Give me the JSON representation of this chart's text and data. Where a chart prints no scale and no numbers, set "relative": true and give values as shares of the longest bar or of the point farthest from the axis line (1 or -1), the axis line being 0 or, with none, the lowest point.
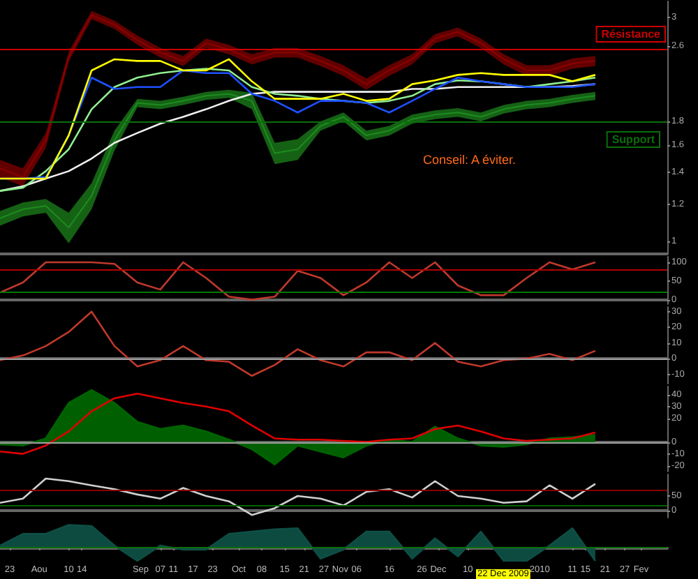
{
  "chart_data": [
    {
      "type": "line",
      "log": "y",
      "tick_labels": "y",
      "xlim": [
        "2009-07-20",
        "2010-02-09"
      ],
      "ylim": [
        0.94,
        3.24
      ],
      "yticks": [
        1,
        1.2,
        1.4,
        1.6,
        1.8,
        2.6,
        3
      ],
      "x": [
        "2009-07-20",
        "2009-07-27",
        "2009-08-03",
        "2009-08-10",
        "2009-08-17",
        "2009-08-24",
        "2009-08-31",
        "2009-09-07",
        "2009-09-14",
        "2009-09-21",
        "2009-09-28",
        "2009-10-05",
        "2009-10-12",
        "2009-10-19",
        "2009-10-26",
        "2009-11-02",
        "2009-11-09",
        "2009-11-16",
        "2009-11-23",
        "2009-11-30",
        "2009-12-07",
        "2009-12-14",
        "2009-12-21",
        "2009-12-28",
        "2010-01-04",
        "2010-01-11",
        "2010-01-18"
      ],
      "series": [
        {
          "color": "#8b0000",
          "values": [
            1.43,
            1.37,
            1.64,
            2.47,
            3.03,
            2.89,
            2.68,
            2.52,
            2.42,
            2.64,
            2.56,
            2.44,
            2.52,
            2.52,
            2.42,
            2.31,
            2.16,
            2.31,
            2.44,
            2.7,
            2.79,
            2.64,
            2.44,
            2.31,
            2.31,
            2.39,
            2.42
          ],
          "lower": [
            1.37,
            1.31,
            1.58,
            2.41,
            2.97,
            2.83,
            2.62,
            2.46,
            2.36,
            2.58,
            2.5,
            2.38,
            2.46,
            2.46,
            2.36,
            2.25,
            2.1,
            2.25,
            2.38,
            2.64,
            2.73,
            2.58,
            2.38,
            2.25,
            2.25,
            2.33,
            2.36
          ],
          "upper": [
            1.49,
            1.43,
            1.7,
            2.53,
            3.09,
            2.95,
            2.74,
            2.58,
            2.48,
            2.7,
            2.62,
            2.5,
            2.58,
            2.58,
            2.48,
            2.37,
            2.22,
            2.37,
            2.5,
            2.76,
            2.85,
            2.7,
            2.5,
            2.37,
            2.37,
            2.45,
            2.48
          ]
        },
        {
          "color": "#1e8c1e",
          "values": [
            1.12,
            1.17,
            1.19,
            1.07,
            1.25,
            1.64,
            1.97,
            1.95,
            1.99,
            2.04,
            2.06,
            1.99,
            1.54,
            1.57,
            1.76,
            1.84,
            1.68,
            1.72,
            1.82,
            1.86,
            1.88,
            1.84,
            1.91,
            1.95,
            1.97,
            2.01,
            2.04
          ],
          "lower": [
            1.08,
            1.13,
            1.15,
            0.99,
            1.17,
            1.56,
            1.93,
            1.91,
            1.95,
            2.0,
            2.02,
            1.91,
            1.46,
            1.49,
            1.72,
            1.8,
            1.64,
            1.68,
            1.78,
            1.82,
            1.84,
            1.8,
            1.87,
            1.91,
            1.93,
            1.97,
            2.0
          ],
          "upper": [
            1.16,
            1.21,
            1.23,
            1.15,
            1.33,
            1.72,
            2.01,
            1.99,
            2.03,
            2.08,
            2.1,
            2.07,
            1.62,
            1.65,
            1.8,
            1.88,
            1.72,
            1.76,
            1.86,
            1.9,
            1.92,
            1.88,
            1.95,
            1.99,
            2.01,
            2.05,
            2.08
          ]
        },
        {
          "color": "#f0f0f0",
          "values": [
            1.28,
            1.31,
            1.36,
            1.41,
            1.5,
            1.62,
            1.7,
            1.78,
            1.84,
            1.91,
            1.99,
            2.06,
            2.08,
            2.08,
            2.08,
            2.08,
            2.08,
            2.08,
            2.11,
            2.11,
            2.13,
            2.13,
            2.13,
            2.13,
            2.13,
            2.14,
            2.16
          ]
        },
        {
          "color": "#90ee90",
          "values": [
            1.28,
            1.3,
            1.41,
            1.57,
            1.91,
            2.13,
            2.23,
            2.28,
            2.31,
            2.33,
            2.31,
            2.13,
            2.06,
            2.04,
            2.01,
            1.99,
            1.97,
            1.99,
            2.04,
            2.16,
            2.2,
            2.19,
            2.16,
            2.13,
            2.16,
            2.19,
            2.23
          ]
        },
        {
          "color": "#1e50ff",
          "values": [
            1.36,
            1.36,
            1.37,
            1.68,
            2.23,
            2.11,
            2.13,
            2.13,
            2.31,
            2.28,
            2.28,
            2.06,
            1.99,
            1.88,
            1.99,
            1.99,
            1.97,
            1.88,
            1.99,
            2.11,
            2.23,
            2.19,
            2.16,
            2.13,
            2.13,
            2.13,
            2.16
          ]
        },
        {
          "color": "#ffff00",
          "values": [
            1.36,
            1.36,
            1.36,
            1.68,
            2.31,
            2.44,
            2.42,
            2.42,
            2.31,
            2.31,
            2.44,
            2.19,
            2.01,
            2.01,
            2.01,
            2.06,
            1.99,
            2.01,
            2.16,
            2.2,
            2.26,
            2.28,
            2.26,
            2.26,
            2.26,
            2.19,
            2.26
          ]
        }
      ],
      "ref_lines": [
        {
          "axis": "y",
          "value": 2.56,
          "label": "Résistance",
          "color": "#cc0000"
        },
        {
          "axis": "y",
          "value": 1.8,
          "label": "Support",
          "color": "#0a6e0a"
        }
      ],
      "annotations": [
        "Conseil: A éviter."
      ]
    },
    {
      "type": "line",
      "tick_labels": "y",
      "xlim": [
        "2009-07-20",
        "2010-02-09"
      ],
      "ylim": [
        -12,
        115
      ],
      "yticks": [
        0,
        50,
        100
      ],
      "x": [
        "2009-07-20",
        "2009-07-27",
        "2009-08-03",
        "2009-08-10",
        "2009-08-17",
        "2009-08-24",
        "2009-08-31",
        "2009-09-07",
        "2009-09-14",
        "2009-09-21",
        "2009-09-28",
        "2009-10-05",
        "2009-10-12",
        "2009-10-19",
        "2009-10-26",
        "2009-11-02",
        "2009-11-09",
        "2009-11-16",
        "2009-11-23",
        "2009-11-30",
        "2009-12-07",
        "2009-12-14",
        "2009-12-21",
        "2009-12-28",
        "2010-01-04",
        "2010-01-11",
        "2010-01-18"
      ],
      "series": [
        {
          "color": "#c0392b",
          "values": [
            19,
            46,
            100,
            100,
            100,
            96,
            46,
            27,
            100,
            58,
            8,
            0,
            8,
            77,
            58,
            12,
            46,
            100,
            58,
            100,
            38,
            12,
            12,
            58,
            100,
            81,
            100
          ]
        }
      ],
      "ref_lines": [
        {
          "axis": "y",
          "value": 80,
          "color": "#b00000"
        },
        {
          "axis": "y",
          "value": 20,
          "color": "#007700"
        }
      ]
    },
    {
      "type": "line",
      "tick_labels": "y",
      "xlim": [
        "2009-07-20",
        "2010-02-09"
      ],
      "ylim": [
        -16,
        33
      ],
      "yticks": [
        -10,
        0,
        10,
        20,
        30
      ],
      "x": [
        "2009-07-20",
        "2009-07-27",
        "2009-08-03",
        "2009-08-10",
        "2009-08-17",
        "2009-08-24",
        "2009-08-31",
        "2009-09-07",
        "2009-09-14",
        "2009-09-21",
        "2009-09-28",
        "2009-10-05",
        "2009-10-12",
        "2009-10-19",
        "2009-10-26",
        "2009-11-02",
        "2009-11-09",
        "2009-11-16",
        "2009-11-23",
        "2009-11-30",
        "2009-12-07",
        "2009-12-14",
        "2009-12-21",
        "2009-12-28",
        "2010-01-04",
        "2010-01-11",
        "2010-01-18"
      ],
      "series": [
        {
          "color": "#c0392b",
          "values": [
            -1,
            2,
            8,
            17,
            30,
            8,
            -5,
            -1,
            8,
            -1,
            -2,
            -11,
            -4,
            6,
            -1,
            -5,
            4,
            4,
            -1,
            10,
            -2,
            -5,
            -1,
            0,
            3,
            -1,
            5
          ]
        }
      ],
      "ref_lines": [
        {
          "axis": "y",
          "value": 0,
          "color": "#a0a0a0"
        }
      ]
    },
    {
      "type": "line",
      "tick_labels": "y",
      "xlim": [
        "2009-07-20",
        "2010-02-09"
      ],
      "ylim": [
        -25,
        47
      ],
      "yticks": [
        -20,
        -10,
        0,
        20,
        30,
        40
      ],
      "x": [
        "2009-07-20",
        "2009-07-27",
        "2009-08-03",
        "2009-08-10",
        "2009-08-17",
        "2009-08-24",
        "2009-08-31",
        "2009-09-07",
        "2009-09-14",
        "2009-09-21",
        "2009-09-28",
        "2009-10-05",
        "2009-10-12",
        "2009-10-19",
        "2009-10-26",
        "2009-11-02",
        "2009-11-09",
        "2009-11-16",
        "2009-11-23",
        "2009-11-30",
        "2009-12-07",
        "2009-12-14",
        "2009-12-21",
        "2009-12-28",
        "2010-01-04",
        "2010-01-11",
        "2010-01-18"
      ],
      "series": [
        {
          "type": "area",
          "color": "#006400",
          "values": [
            -2,
            -3,
            3,
            33,
            44,
            33,
            17,
            11,
            14,
            9,
            2,
            -6,
            -19,
            -3,
            -8,
            -13,
            -3,
            2,
            0,
            13,
            3,
            -3,
            -4,
            -2,
            3,
            4,
            6
          ]
        },
        {
          "color": "#e00000",
          "values": [
            -8,
            -10,
            -3,
            9,
            26,
            37,
            41,
            37,
            33,
            30,
            26,
            14,
            3,
            2,
            2,
            1,
            0,
            2,
            3,
            11,
            14,
            9,
            3,
            1,
            2,
            3,
            8
          ]
        }
      ],
      "ref_lines": [
        {
          "axis": "y",
          "value": 0,
          "color": "#a0a0a0"
        }
      ]
    },
    {
      "type": "line",
      "tick_labels": "y",
      "xlim": [
        "2009-07-20",
        "2010-02-09"
      ],
      "ylim": [
        -23,
        123
      ],
      "yticks": [
        0,
        50
      ],
      "x": [
        "2009-07-20",
        "2009-07-27",
        "2009-08-03",
        "2009-08-10",
        "2009-08-17",
        "2009-08-24",
        "2009-08-31",
        "2009-09-07",
        "2009-09-14",
        "2009-09-21",
        "2009-09-28",
        "2009-10-05",
        "2009-10-12",
        "2009-10-19",
        "2009-10-26",
        "2009-11-02",
        "2009-11-09",
        "2009-11-16",
        "2009-11-23",
        "2009-11-30",
        "2009-12-07",
        "2009-12-14",
        "2009-12-21",
        "2009-12-28",
        "2010-01-04",
        "2010-01-11",
        "2010-01-18"
      ],
      "series": [
        {
          "color": "#d0d0d0",
          "values": [
            27,
            41,
            109,
            100,
            86,
            73,
            55,
            41,
            77,
            50,
            32,
            -14,
            9,
            50,
            41,
            18,
            64,
            73,
            45,
            100,
            50,
            41,
            27,
            32,
            86,
            41,
            91
          ]
        }
      ],
      "ref_lines": [
        {
          "axis": "y",
          "value": 70,
          "color": "#8b0000"
        },
        {
          "axis": "y",
          "value": 20,
          "color": "#006400"
        }
      ]
    },
    {
      "type": "area",
      "relative": true,
      "tick_labels": "x",
      "xlim": [
        "2009-07-20",
        "2010-02-09"
      ],
      "xticks": [
        {
          "value": "2009-07-23",
          "label": "23"
        },
        {
          "value": "2009-08-01",
          "label": "Aou"
        },
        {
          "value": "2009-08-10",
          "label": "10"
        },
        {
          "value": "2009-08-14",
          "label": "14"
        },
        {
          "value": "2009-09-01",
          "label": "Sep"
        },
        {
          "value": "2009-09-07",
          "label": "07"
        },
        {
          "value": "2009-09-11",
          "label": "11"
        },
        {
          "value": "2009-09-17",
          "label": "17"
        },
        {
          "value": "2009-09-23",
          "label": "23"
        },
        {
          "value": "2009-10-01",
          "label": "Oct"
        },
        {
          "value": "2009-10-08",
          "label": "08"
        },
        {
          "value": "2009-10-15",
          "label": "15"
        },
        {
          "value": "2009-10-21",
          "label": "21"
        },
        {
          "value": "2009-10-27",
          "label": "27"
        },
        {
          "value": "2009-11-01",
          "label": "Nov"
        },
        {
          "value": "2009-11-06",
          "label": "06"
        },
        {
          "value": "2009-11-16",
          "label": "16"
        },
        {
          "value": "2009-11-26",
          "label": "26"
        },
        {
          "value": "2009-12-01",
          "label": "Dec"
        },
        {
          "value": "2009-12-10",
          "label": "10"
        },
        {
          "value": "2010-01-01",
          "label": "2010"
        },
        {
          "value": "2010-01-11",
          "label": "11"
        },
        {
          "value": "2010-01-15",
          "label": "15"
        },
        {
          "value": "2010-01-21",
          "label": "21"
        },
        {
          "value": "2010-01-27",
          "label": "27"
        },
        {
          "value": "2010-02-01",
          "label": "Fev"
        }
      ],
      "x": [
        "2009-07-20",
        "2009-07-27",
        "2009-08-03",
        "2009-08-10",
        "2009-08-17",
        "2009-08-24",
        "2009-08-31",
        "2009-09-07",
        "2009-09-14",
        "2009-09-21",
        "2009-09-28",
        "2009-10-05",
        "2009-10-12",
        "2009-10-19",
        "2009-10-26",
        "2009-11-02",
        "2009-11-09",
        "2009-11-16",
        "2009-11-23",
        "2009-11-30",
        "2009-12-07",
        "2009-12-14",
        "2009-12-21",
        "2009-12-28",
        "2010-01-04",
        "2010-01-11",
        "2010-01-18"
      ],
      "series": [
        {
          "color": "#0e4f45",
          "values": [
            0.08,
            0.6,
            0.6,
            1,
            0.95,
            0.08,
            -0.6,
            0.08,
            -0.1,
            -0.1,
            0.6,
            0.7,
            0.8,
            0.85,
            -0.5,
            -0.1,
            0.7,
            0.7,
            -0.5,
            0.4,
            -0.4,
            0.7,
            -0.6,
            -0.6,
            0.08,
            0.85,
            -0.6
          ]
        }
      ],
      "ref_lines": [
        {
          "axis": "y",
          "value": 0,
          "color": "#0a6e0a"
        }
      ],
      "annotations": [
        "22 Dec 2009"
      ]
    }
  ]
}
